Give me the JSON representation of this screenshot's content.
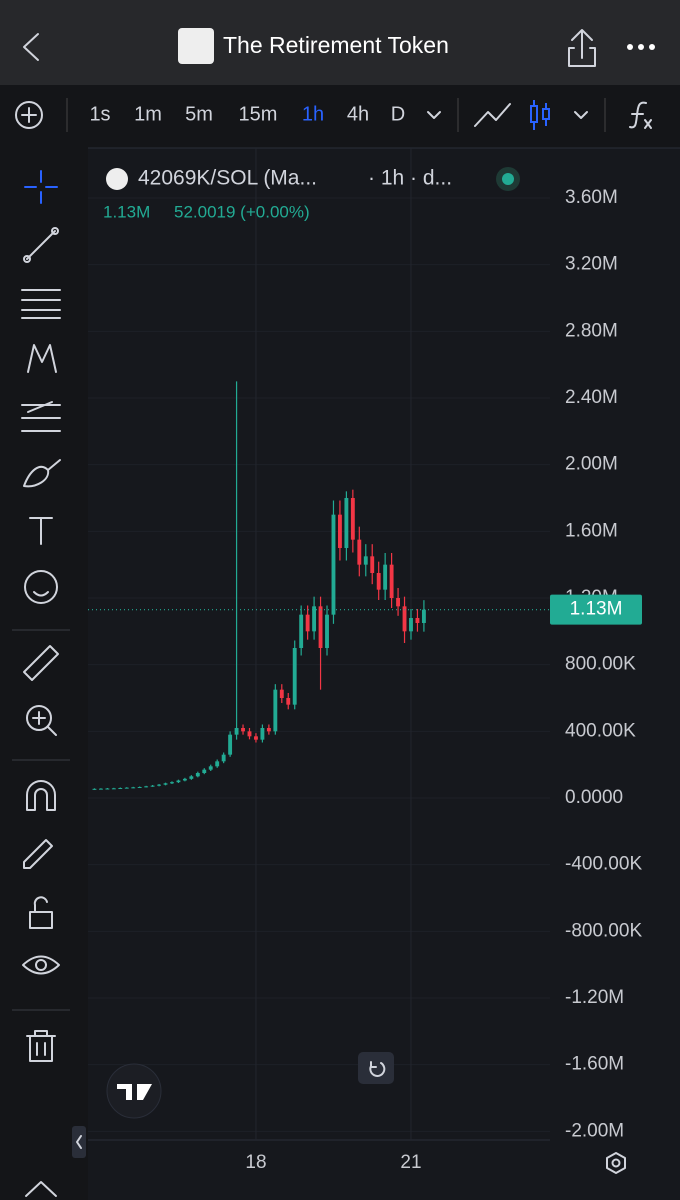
{
  "header": {
    "title": "The Retirement Token"
  },
  "toolbar": {
    "intervals": [
      "1s",
      "1m",
      "5m",
      "15m",
      "1h",
      "4h",
      "D"
    ],
    "active_interval": "1h"
  },
  "legend": {
    "symbol": "42069K/SOL (Ma...",
    "meta": "· 1h · d...",
    "last": "1.13M",
    "change": "52.0019 (+0.00%)"
  },
  "chart_data": {
    "type": "candlestick",
    "x": [
      14.875,
      15,
      15.125,
      15.25,
      15.375,
      15.5,
      15.625,
      15.75,
      15.875,
      16,
      16.125,
      16.25,
      16.375,
      16.5,
      16.625,
      16.75,
      16.875,
      17,
      17.125,
      17.25,
      17.375,
      17.5,
      17.625,
      17.75,
      17.875,
      18,
      18.125,
      18.25,
      18.375,
      18.5,
      18.625,
      18.75,
      18.875,
      19,
      19.125,
      19.25,
      19.375,
      19.5,
      19.625,
      19.75,
      19.875,
      20,
      20.125,
      20.25,
      20.375,
      20.5,
      20.625,
      20.75,
      20.875,
      21,
      21.125,
      21.25
    ],
    "open": [
      52000,
      55000,
      56000,
      57000,
      58000,
      60000,
      62000,
      64000,
      66000,
      70000,
      74000,
      80000,
      88000,
      95000,
      105000,
      115000,
      130000,
      150000,
      170000,
      190000,
      220000,
      260000,
      380000,
      420000,
      400000,
      370000,
      350000,
      420000,
      400000,
      650000,
      600000,
      560000,
      900000,
      1100000,
      1000000,
      1150000,
      900000,
      1100000,
      1700000,
      1500000,
      1800000,
      1550000,
      1400000,
      1450000,
      1350000,
      1250000,
      1400000,
      1200000,
      1150000,
      1000000,
      1080000,
      1050000
    ],
    "high": [
      58000,
      59000,
      60000,
      61000,
      63000,
      65000,
      67000,
      69000,
      73000,
      78000,
      84000,
      92000,
      100000,
      110000,
      121000,
      137000,
      158000,
      179000,
      200000,
      231000,
      273000,
      400000,
      2500000,
      441000,
      420000,
      389000,
      441000,
      441000,
      683000,
      683000,
      630000,
      945000,
      1155000,
      1155000,
      1208000,
      1208000,
      1155000,
      1785000,
      1785000,
      1840000,
      1850000,
      1628000,
      1523000,
      1523000,
      1418000,
      1470000,
      1470000,
      1260000,
      1208000,
      1134000,
      1134000,
      1187000
    ],
    "low": [
      49000,
      52000,
      53000,
      54000,
      55000,
      57000,
      59000,
      61000,
      63000,
      67000,
      70000,
      76000,
      84000,
      90000,
      100000,
      109000,
      124000,
      143000,
      162000,
      181000,
      209000,
      247000,
      350000,
      380000,
      352000,
      333000,
      333000,
      380000,
      380000,
      570000,
      532000,
      532000,
      855000,
      950000,
      950000,
      650000,
      855000,
      1045000,
      1425000,
      1425000,
      1473000,
      1330000,
      1330000,
      1283000,
      1188000,
      1188000,
      1140000,
      1093000,
      930000,
      950000,
      998000,
      998000
    ],
    "close": [
      55000,
      56000,
      57000,
      58000,
      60000,
      62000,
      64000,
      66000,
      70000,
      74000,
      80000,
      88000,
      95000,
      105000,
      115000,
      130000,
      150000,
      170000,
      190000,
      220000,
      260000,
      380000,
      420000,
      400000,
      370000,
      350000,
      420000,
      400000,
      650000,
      600000,
      560000,
      900000,
      1100000,
      1000000,
      1150000,
      900000,
      1100000,
      1700000,
      1500000,
      1800000,
      1550000,
      1400000,
      1450000,
      1350000,
      1250000,
      1400000,
      1200000,
      1150000,
      1000000,
      1080000,
      1050000,
      1130000
    ],
    "up_color": "#22ab94",
    "down_color": "#f23645",
    "xlim": [
      14.75,
      23.69
    ],
    "xticks": [
      18,
      21
    ],
    "ylim": [
      -2052000,
      3900000
    ],
    "yticks": [
      {
        "value": 3600000,
        "label": "3.60M"
      },
      {
        "value": 3200000,
        "label": "3.20M"
      },
      {
        "value": 2800000,
        "label": "2.80M"
      },
      {
        "value": 2400000,
        "label": "2.40M"
      },
      {
        "value": 2000000,
        "label": "2.00M"
      },
      {
        "value": 1600000,
        "label": "1.60M"
      },
      {
        "value": 1200000,
        "label": "1.20M"
      },
      {
        "value": 800000,
        "label": "800.00K"
      },
      {
        "value": 400000,
        "label": "400.00K"
      },
      {
        "value": 0,
        "label": "0.0000"
      },
      {
        "value": -400000,
        "label": "-400.00K"
      },
      {
        "value": -800000,
        "label": "-800.00K"
      },
      {
        "value": -1200000,
        "label": "-1.20M"
      },
      {
        "value": -1600000,
        "label": "-1.60M"
      },
      {
        "value": -2000000,
        "label": "-2.00M"
      }
    ],
    "price_line": {
      "value": 1130000,
      "label": "1.13M"
    },
    "grid": true
  }
}
